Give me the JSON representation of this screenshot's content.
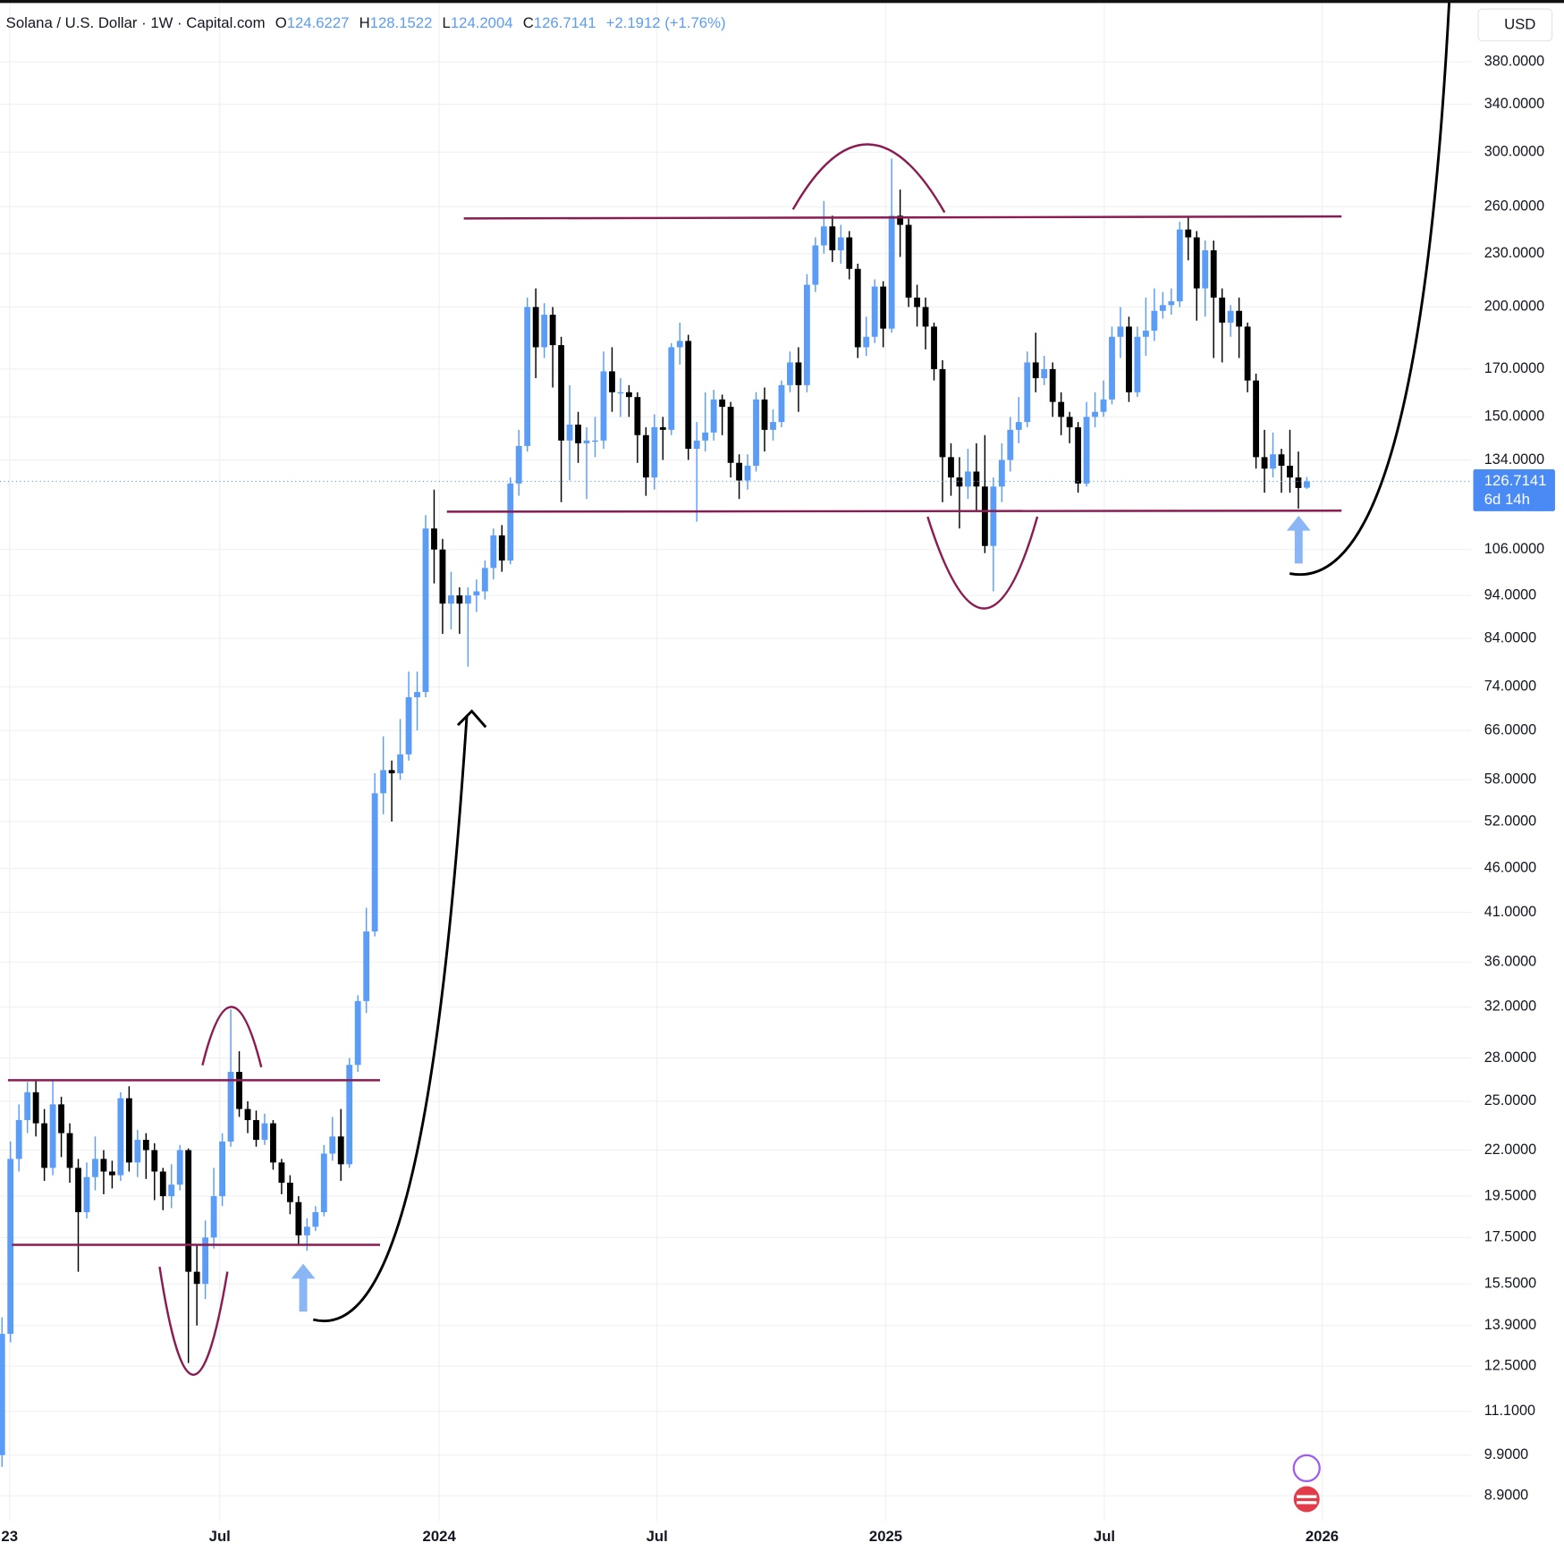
{
  "chart_data": {
    "type": "candlestick",
    "title": "Solana / U.S. Dollar · 1W · Capital.com",
    "ohlc_labels": [
      "O",
      "H",
      "L",
      "C"
    ],
    "change_label": "+2.1912 (+1.76%)",
    "currency": "USD",
    "countdown": "6d 14h",
    "yscale": "log",
    "grid": true,
    "up_color": "#5b9cf6",
    "down_color": "#000000",
    "xlim": [
      -0.235,
      173.4
    ],
    "xticks": [
      {
        "value": 0.9,
        "label": "23"
      },
      {
        "value": 25.7,
        "label": "Jul"
      },
      {
        "value": 51.6,
        "label": "2024"
      },
      {
        "value": 77.3,
        "label": "Jul"
      },
      {
        "value": 104.3,
        "label": "2025"
      },
      {
        "value": 130.1,
        "label": "Jul"
      },
      {
        "value": 155.8,
        "label": "2026"
      }
    ],
    "ylim": [
      8.33,
      446.8
    ],
    "yticks": [
      {
        "value": 380,
        "label": "380.0000"
      },
      {
        "value": 340,
        "label": "340.0000"
      },
      {
        "value": 300,
        "label": "300.0000"
      },
      {
        "value": 260,
        "label": "260.0000"
      },
      {
        "value": 230,
        "label": "230.0000"
      },
      {
        "value": 200,
        "label": "200.0000"
      },
      {
        "value": 170,
        "label": "170.0000"
      },
      {
        "value": 150,
        "label": "150.0000"
      },
      {
        "value": 134,
        "label": "134.0000"
      },
      {
        "value": 106,
        "label": "106.0000"
      },
      {
        "value": 94,
        "label": "94.0000"
      },
      {
        "value": 84,
        "label": "84.0000"
      },
      {
        "value": 74,
        "label": "74.0000"
      },
      {
        "value": 66,
        "label": "66.0000"
      },
      {
        "value": 58,
        "label": "58.0000"
      },
      {
        "value": 52,
        "label": "52.0000"
      },
      {
        "value": 46,
        "label": "46.0000"
      },
      {
        "value": 41,
        "label": "41.0000"
      },
      {
        "value": 36,
        "label": "36.0000"
      },
      {
        "value": 32,
        "label": "32.0000"
      },
      {
        "value": 28,
        "label": "28.0000"
      },
      {
        "value": 25,
        "label": "25.0000"
      },
      {
        "value": 22,
        "label": "22.0000"
      },
      {
        "value": 19.5,
        "label": "19.5000"
      },
      {
        "value": 17.5,
        "label": "17.5000"
      },
      {
        "value": 15.5,
        "label": "15.5000"
      },
      {
        "value": 13.9,
        "label": "13.9000"
      },
      {
        "value": 12.5,
        "label": "12.5000"
      },
      {
        "value": 11.1,
        "label": "11.1000"
      },
      {
        "value": 9.9,
        "label": "9.9000"
      },
      {
        "value": 8.9,
        "label": "8.9000"
      }
    ],
    "series": [
      {
        "open": [
          9.9,
          13.6,
          21.5,
          23.8,
          25.6,
          23.6,
          21.0,
          24.8,
          23.0,
          21.0,
          18.7,
          20.5,
          21.5,
          20.8,
          20.6,
          25.2,
          21.3,
          22.6,
          22.0,
          20.8,
          19.5,
          20.1,
          22.0,
          16.0,
          15.5,
          17.5,
          19.5,
          22.5,
          27.0,
          24.5,
          23.8,
          22.6,
          23.6,
          21.3,
          20.2,
          19.2,
          17.6,
          18.0,
          18.7,
          21.8,
          22.8,
          21.2,
          27.5,
          32.5,
          39.0,
          56.0,
          59.5,
          59.0,
          62,
          72,
          73,
          112,
          106,
          92,
          94,
          92,
          94,
          95,
          101,
          110,
          103,
          126,
          139,
          200,
          180,
          196,
          181,
          141,
          147,
          140,
          141,
          141,
          169,
          160,
          160,
          158,
          143,
          128,
          146,
          145,
          180,
          183,
          138,
          141,
          144,
          157,
          154,
          133,
          127,
          132,
          157,
          145,
          148,
          163,
          173,
          163,
          212,
          235,
          247,
          232,
          240,
          221,
          180,
          185,
          211,
          189,
          254,
          248,
          205,
          200,
          190,
          170,
          135,
          128,
          125,
          130,
          125,
          107,
          125,
          134,
          145,
          148,
          173,
          166,
          170,
          156,
          150,
          146,
          126,
          150,
          152,
          157,
          185,
          190,
          160,
          185,
          188,
          198,
          201,
          203,
          245,
          240,
          210,
          232,
          205,
          192,
          198,
          190,
          165,
          135,
          131,
          136,
          132,
          128,
          124.6227
        ],
        "high": [
          14.2,
          22.5,
          24.8,
          26.3,
          26.4,
          24.5,
          26.5,
          25.3,
          23.6,
          21.5,
          21.3,
          22.8,
          22.0,
          21.4,
          25.6,
          26.0,
          23.2,
          23.0,
          22.4,
          21.0,
          21.2,
          22.3,
          22.1,
          17.2,
          18.3,
          21.0,
          23.0,
          31.8,
          28.5,
          25.0,
          24.4,
          24.2,
          23.8,
          21.5,
          20.6,
          19.5,
          18.4,
          19.0,
          22.3,
          24.0,
          24.5,
          28.0,
          33.0,
          41.5,
          59.0,
          65.0,
          61.0,
          68,
          77,
          77,
          116,
          124,
          109,
          100,
          96,
          96,
          98,
          103,
          112,
          113,
          128,
          145,
          205,
          210,
          202,
          200,
          185,
          163,
          152,
          146,
          150,
          178,
          180,
          166,
          163,
          160,
          146,
          151,
          150,
          182,
          192,
          186,
          148,
          160,
          161,
          159,
          156,
          136,
          136,
          160,
          162,
          153,
          165,
          178,
          180,
          218,
          240,
          264,
          254,
          248,
          244,
          224,
          195,
          215,
          214,
          295,
          272,
          252,
          212,
          205,
          192,
          174,
          140,
          135,
          138,
          140,
          143,
          128,
          140,
          150,
          158,
          178,
          187,
          176,
          173,
          160,
          152,
          148,
          156,
          160,
          165,
          190,
          200,
          195,
          190,
          205,
          210,
          208,
          210,
          250,
          253,
          244,
          238,
          238,
          210,
          201,
          205,
          192,
          168,
          145,
          144,
          138,
          145,
          137,
          128.1522
        ],
        "low": [
          9.6,
          13.3,
          20.8,
          23.0,
          22.8,
          20.3,
          20.6,
          21.6,
          20.2,
          16.0,
          18.4,
          19.8,
          19.6,
          19.9,
          20.3,
          20.8,
          20.5,
          20.4,
          19.3,
          18.8,
          18.9,
          19.8,
          12.6,
          13.9,
          14.9,
          17.0,
          19.0,
          22.2,
          24.0,
          23.0,
          22.2,
          22.3,
          20.9,
          19.6,
          18.6,
          17.2,
          16.9,
          17.8,
          18.5,
          21.4,
          20.3,
          21.0,
          27.0,
          31.5,
          38.5,
          53.0,
          52.0,
          58,
          61,
          66,
          72,
          97,
          85,
          86,
          85,
          78,
          90,
          93,
          98,
          100,
          102,
          122,
          137,
          166,
          175,
          162,
          120,
          127,
          133,
          121,
          135,
          138,
          152,
          150,
          150,
          133,
          122,
          124,
          134,
          143,
          172,
          134,
          114,
          137,
          141,
          143,
          128,
          121,
          124,
          130,
          137,
          141,
          146,
          160,
          152,
          160,
          208,
          230,
          225,
          224,
          215,
          175,
          176,
          182,
          180,
          187,
          228,
          200,
          190,
          179,
          165,
          120,
          122,
          112,
          121,
          117,
          105,
          95,
          120,
          130,
          140,
          146,
          160,
          163,
          150,
          143,
          140,
          123,
          125,
          146,
          150,
          155,
          175,
          156,
          158,
          176,
          183,
          194,
          196,
          200,
          226,
          193,
          195,
          175,
          173,
          185,
          175,
          160,
          131,
          123,
          128,
          123,
          123,
          118,
          124.2004
        ],
        "close": [
          13.6,
          21.5,
          23.8,
          25.6,
          23.6,
          21.0,
          24.8,
          23.0,
          21.0,
          18.7,
          20.5,
          21.5,
          20.8,
          20.6,
          25.2,
          21.3,
          22.6,
          22.0,
          20.8,
          19.5,
          20.1,
          22.0,
          16.0,
          15.5,
          17.5,
          19.5,
          22.5,
          27.0,
          24.5,
          23.8,
          22.6,
          23.6,
          21.3,
          20.2,
          19.2,
          17.6,
          18.0,
          18.7,
          21.8,
          22.8,
          21.2,
          27.5,
          32.5,
          39.0,
          56.0,
          59.5,
          59.0,
          62,
          72,
          73,
          112,
          106,
          92,
          94,
          92,
          94,
          95,
          101,
          110,
          103,
          126,
          139,
          200,
          180,
          196,
          181,
          141,
          147,
          140,
          141,
          141,
          169,
          160,
          160,
          158,
          143,
          128,
          146,
          145,
          180,
          183,
          138,
          141,
          144,
          157,
          154,
          133,
          127,
          132,
          157,
          145,
          148,
          163,
          173,
          163,
          212,
          235,
          247,
          232,
          240,
          221,
          180,
          185,
          211,
          189,
          254,
          248,
          205,
          200,
          190,
          170,
          135,
          128,
          125,
          130,
          125,
          107,
          125,
          134,
          145,
          148,
          173,
          166,
          170,
          156,
          150,
          146,
          126,
          150,
          152,
          157,
          185,
          190,
          160,
          185,
          188,
          198,
          201,
          203,
          245,
          240,
          210,
          232,
          205,
          192,
          198,
          190,
          165,
          135,
          131,
          136,
          132,
          128,
          124.5229,
          126.7141
        ]
      }
    ]
  }
}
